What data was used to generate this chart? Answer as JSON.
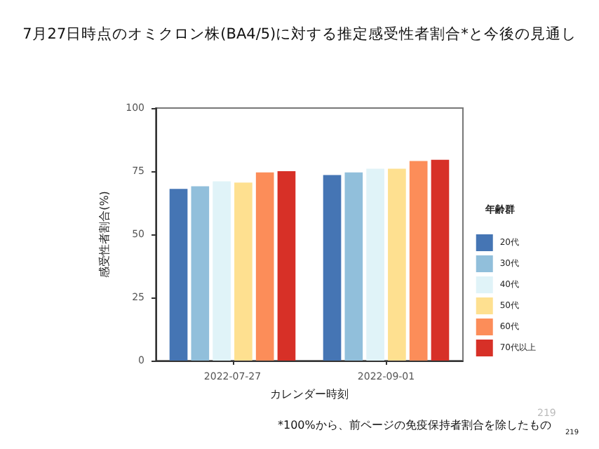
{
  "chart_data": {
    "type": "bar",
    "title": "7月27日時点のオミクロン株(BA4/5)に対する推定感受性者割合*と今後の見通し",
    "xlabel": "カレンダー時刻",
    "ylabel": "感受性者割合(%)",
    "legend_title": "年齢群",
    "categories": [
      "2022-07-27",
      "2022-09-01"
    ],
    "series": [
      {
        "name": "20代",
        "color": "#4575b4",
        "values": [
          68,
          73.5
        ]
      },
      {
        "name": "30代",
        "color": "#91bfdb",
        "values": [
          69,
          74.5
        ]
      },
      {
        "name": "40代",
        "color": "#e0f3f8",
        "values": [
          71,
          76
        ]
      },
      {
        "name": "50代",
        "color": "#fee090",
        "values": [
          70.5,
          76
        ]
      },
      {
        "name": "60代",
        "color": "#fc8d59",
        "values": [
          74.5,
          79
        ]
      },
      {
        "name": "70代以上",
        "color": "#d73027",
        "values": [
          75,
          79.5
        ]
      }
    ],
    "ylim": [
      0,
      100
    ],
    "yticks": [
      0,
      25,
      50,
      75,
      100
    ],
    "grid": false,
    "legend": "right",
    "annotations": [
      "*100%から、前ページの免疫保持者割合を除したもの",
      "219",
      "219"
    ]
  }
}
